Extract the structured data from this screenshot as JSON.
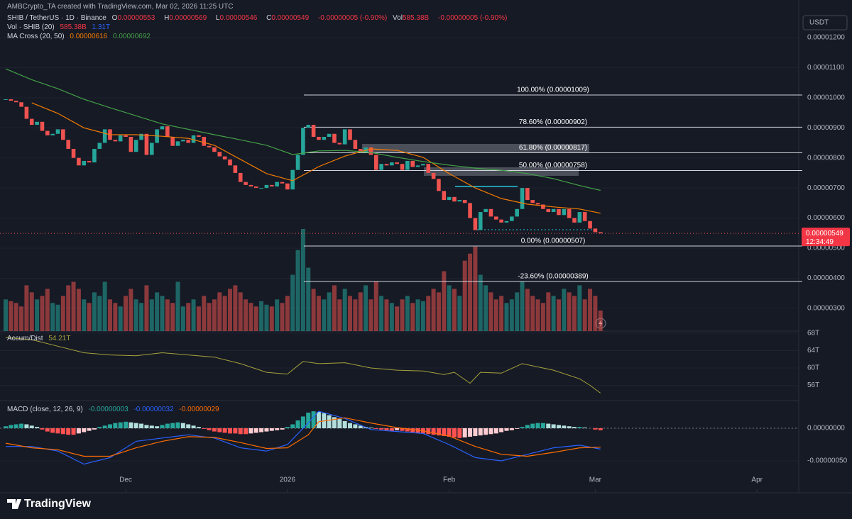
{
  "header": {
    "credit": "AMBCrypto_TA created with TradingView.com, Mar 02, 2026 11:25 UTC",
    "currency": "USDT",
    "branding": "TradingView"
  },
  "chart_data": [
    {
      "type": "candlestick",
      "symbol": "SHIB / TetherUS · 1D · Binance",
      "ohlc_legend": [
        {
          "label": "O",
          "value": "0.00000553"
        },
        {
          "label": "H",
          "value": "0.00000569"
        },
        {
          "label": "L",
          "value": "0.00000546"
        },
        {
          "label": "C",
          "value": "0.00000549"
        }
      ],
      "change": "-0.00000005 (-0.90%)",
      "volume_legend": {
        "label": "Vol",
        "value": "585.38B"
      },
      "volume_change": "-0.00000005 (-0.90%)",
      "volume_indicator": {
        "name": "Vol · SHIB (20)",
        "values": [
          "585.38B",
          "1.31T"
        ],
        "colors": [
          "#f23645",
          "#2962ff"
        ]
      },
      "ma_legend": "MA Cross (20, 50)",
      "up_color": "#26a69a",
      "down_color": "#ef5350",
      "xlim": [
        -1.09,
        152
      ],
      "xticks": [
        {
          "value": 23,
          "label": "Dec"
        },
        {
          "value": 54,
          "label": "2026"
        },
        {
          "value": 85,
          "label": "Feb"
        },
        {
          "value": 113,
          "label": "Mar"
        },
        {
          "value": 144,
          "label": "Apr"
        }
      ],
      "ylim": [
        2.17e-06,
        1.325e-05
      ],
      "yticks": [
        {
          "value": 1.2e-05,
          "label": "0.00001200"
        },
        {
          "value": 1.1e-05,
          "label": "0.00001100"
        },
        {
          "value": 1e-05,
          "label": "0.00001000"
        },
        {
          "value": 9e-06,
          "label": "0.00000900"
        },
        {
          "value": 8e-06,
          "label": "0.00000800"
        },
        {
          "value": 7e-06,
          "label": "0.00000700"
        },
        {
          "value": 6e-06,
          "label": "0.00000600"
        },
        {
          "value": 5e-06,
          "label": "0.00000500"
        },
        {
          "value": 4e-06,
          "label": "0.00000400"
        },
        {
          "value": 3e-06,
          "label": "0.00000300"
        }
      ],
      "grid": true,
      "close": [
        9.95e-06,
        9.9e-06,
        9.85e-06,
        9.7e-06,
        9.3e-06,
        9.1e-06,
        9.2e-06,
        8.9e-06,
        8.75e-06,
        8.8e-06,
        8.95e-06,
        8.6e-06,
        8.3e-06,
        8e-06,
        7.75e-06,
        7.9e-06,
        7.85e-06,
        8.3e-06,
        8.5e-06,
        8.95e-06,
        8.6e-06,
        8.55e-06,
        8.75e-06,
        8.7e-06,
        8.2e-06,
        8.6e-06,
        8.8e-06,
        8.1e-06,
        8.5e-06,
        8.95e-06,
        9.05e-06,
        8.7e-06,
        8.4e-06,
        8.55e-06,
        8.6e-06,
        8.5e-06,
        8.75e-06,
        8.7e-06,
        8.4e-06,
        8.35e-06,
        8.2e-06,
        8.05e-06,
        7.95e-06,
        7.75e-06,
        7.5e-06,
        7.2e-06,
        7.1e-06,
        7.05e-06,
        7e-06,
        7e-06,
        7.1e-06,
        7.05e-06,
        7.2e-06,
        7.15e-06,
        6.95e-06,
        7.6e-06,
        8.1e-06,
        9e-06,
        9.1e-06,
        8.7e-06,
        8.6e-06,
        8.7e-06,
        8.8e-06,
        8.5e-06,
        8.45e-06,
        8.95e-06,
        8.6e-06,
        8.3e-06,
        8.2e-06,
        8.35e-06,
        8.1e-06,
        7.6e-06,
        7.8e-06,
        7.75e-06,
        7.85e-06,
        7.8e-06,
        7.6e-06,
        7.9e-06,
        7.7e-06,
        7.75e-06,
        7.8e-06,
        7.5e-06,
        7.3e-06,
        6.9e-06,
        6.6e-06,
        6.7e-06,
        6.55e-06,
        6.6e-06,
        6.5e-06,
        6e-06,
        5.6e-06,
        6.2e-06,
        6.3e-06,
        6.05e-06,
        5.95e-06,
        5.85e-06,
        5.9e-06,
        6.05e-06,
        6.3e-06,
        7e-06,
        6.6e-06,
        6.5e-06,
        6.45e-06,
        6.3e-06,
        6.2e-06,
        6.3e-06,
        6.1e-06,
        6.3e-06,
        6e-06,
        5.85e-06,
        6.2e-06,
        5.9e-06,
        5.65e-06,
        5.53e-06,
        5.49e-06
      ],
      "volume": [
        900,
        850,
        800,
        700,
        1300,
        1100,
        900,
        1000,
        1200,
        800,
        750,
        1000,
        1300,
        1400,
        1200,
        900,
        800,
        1100,
        1000,
        1400,
        900,
        800,
        700,
        1000,
        1200,
        900,
        800,
        1300,
        900,
        1100,
        1000,
        900,
        800,
        1400,
        700,
        800,
        900,
        700,
        1000,
        800,
        900,
        1100,
        1000,
        1200,
        1300,
        1100,
        900,
        800,
        700,
        850,
        750,
        700,
        900,
        800,
        1000,
        1600,
        2300,
        2900,
        1800,
        1200,
        1000,
        900,
        1100,
        1300,
        900,
        1200,
        1000,
        900,
        1100,
        1300,
        900,
        1400,
        1000,
        900,
        800,
        700,
        900,
        1000,
        800,
        900,
        850,
        1000,
        1200,
        1100,
        1700,
        1300,
        1200,
        1000,
        2000,
        2200,
        2400,
        1600,
        1300,
        1100,
        900,
        1000,
        800,
        900,
        1100,
        1400,
        1200,
        1000,
        900,
        800,
        1100,
        1000,
        900,
        1200,
        1100,
        1000,
        1300,
        900,
        1200,
        1000,
        585.38
      ],
      "volume_ylim": [
        0,
        9400
      ],
      "ma": {
        "x": [
          0,
          5,
          10,
          15,
          20,
          25,
          30,
          35,
          40,
          45,
          50,
          55,
          60,
          65,
          70,
          75,
          80,
          85,
          90,
          95,
          100,
          105,
          110,
          114
        ],
        "series": [
          {
            "color": "#f57c00",
            "legend": "0.00000616",
            "values": [
              null,
              9.83e-06,
              9.48e-06,
              9e-06,
              8.77e-06,
              8.77e-06,
              8.72e-06,
              8.65e-06,
              8.42e-06,
              7.95e-06,
              7.48e-06,
              7.24e-06,
              7.71e-06,
              8.06e-06,
              8.3e-06,
              8.25e-06,
              8.02e-06,
              7.48e-06,
              7e-06,
              6.65e-06,
              6.46e-06,
              6.37e-06,
              6.3e-06,
              6.16e-06
            ]
          },
          {
            "color": "#43a047",
            "legend": "0.00000692",
            "values": [
              1.096e-05,
              1.06e-05,
              1.03e-05,
              9.95e-06,
              9.67e-06,
              9.4e-06,
              9.13e-06,
              8.95e-06,
              8.77e-06,
              8.6e-06,
              8.42e-06,
              8.11e-06,
              8.23e-06,
              8.25e-06,
              8.18e-06,
              8.02e-06,
              7.88e-06,
              7.76e-06,
              7.66e-06,
              7.59e-06,
              7.48e-06,
              7.31e-06,
              7.08e-06,
              6.92e-06
            ]
          }
        ]
      },
      "fib": [
        {
          "value": 1.009e-05,
          "label": "100.00% (0.00001009)"
        },
        {
          "value": 9.02e-06,
          "label": "78.60% (0.00000902)"
        },
        {
          "value": 8.17e-06,
          "label": "61.80% (0.00000817)"
        },
        {
          "value": 7.58e-06,
          "label": "50.00% (0.00000758)"
        },
        {
          "value": 5.07e-06,
          "label": "0.00% (0.00000507)"
        },
        {
          "value": 3.89e-06,
          "label": "-23.60% (0.00000389)"
        }
      ],
      "price_tag": {
        "value": 5.49e-06,
        "label": "0.00000549"
      },
      "countdown": "12:34:49"
    },
    {
      "type": "line",
      "name": "Accum/Dist",
      "legend": "54.21T",
      "color": "#a5a23a",
      "x": [
        0,
        5,
        10,
        15,
        20,
        25,
        30,
        35,
        40,
        45,
        50,
        54,
        57,
        60,
        65,
        70,
        75,
        80,
        84,
        86,
        89,
        91,
        95,
        99,
        105,
        110,
        112,
        114
      ],
      "values": [
        67,
        66.5,
        65,
        63.5,
        63,
        62.8,
        63.5,
        63,
        62.5,
        61,
        59,
        58.6,
        61.5,
        61,
        61.2,
        60,
        59.5,
        59.3,
        58.5,
        59,
        56.5,
        59,
        58.8,
        61,
        59.5,
        57.5,
        56,
        54.21
      ],
      "ylim": [
        52.5,
        68.8
      ],
      "yticks": [
        {
          "value": 68,
          "label": "68T"
        },
        {
          "value": 64,
          "label": "64T"
        },
        {
          "value": 60,
          "label": "60T"
        },
        {
          "value": 56,
          "label": "56T"
        }
      ]
    },
    {
      "type": "macd",
      "name": "MACD (close, 12, 26, 9)",
      "histogram_legend": "-0.00000003",
      "histogram": [
        3e-08,
        5e-08,
        6e-08,
        7e-08,
        6e-08,
        4e-08,
        2e-08,
        -2e-08,
        -5e-08,
        -7e-08,
        -8e-08,
        -9e-08,
        -1e-07,
        -1e-07,
        -8e-08,
        -6e-08,
        -4e-08,
        -2e-08,
        2e-08,
        4e-08,
        6e-08,
        8e-08,
        9e-08,
        1e-07,
        9e-08,
        8e-08,
        7e-08,
        5e-08,
        4e-08,
        3e-08,
        5e-08,
        7e-08,
        8e-08,
        9e-08,
        8e-08,
        6e-08,
        4e-08,
        2e-08,
        -1e-08,
        -3e-08,
        -5e-08,
        -6e-08,
        -7e-08,
        -8e-08,
        -8e-08,
        -9e-08,
        -9e-08,
        -8e-08,
        -7e-08,
        -6e-08,
        -5e-08,
        -4e-08,
        -3e-08,
        -2e-08,
        2e-08,
        6e-08,
        1.2e-07,
        1.8e-07,
        2.4e-07,
        2.6e-07,
        2.5e-07,
        2.3e-07,
        2e-07,
        1.7e-07,
        1.4e-07,
        1.1e-07,
        8e-08,
        6e-08,
        4e-08,
        2e-08,
        1e-08,
        -1e-08,
        -2e-08,
        -3e-08,
        -4e-08,
        -3e-08,
        -4e-08,
        -5e-08,
        -6e-08,
        -7e-08,
        -8e-08,
        -9e-08,
        -1e-07,
        -1.1e-07,
        -1.2e-07,
        -1.3e-07,
        -1.4e-07,
        -1.5e-07,
        -1.4e-07,
        -1.3e-07,
        -1.2e-07,
        -1.1e-07,
        -1e-07,
        -9e-08,
        -8e-08,
        -6e-08,
        -4e-08,
        -3e-08,
        -1e-08,
        2e-08,
        5e-08,
        7e-08,
        8e-08,
        8e-08,
        7e-08,
        6e-08,
        5e-08,
        4e-08,
        3e-08,
        2e-08,
        2e-08,
        1e-08,
        0,
        -2e-08,
        -3e-08
      ],
      "x": [
        0,
        5,
        10,
        15,
        20,
        25,
        30,
        35,
        40,
        45,
        50,
        54,
        58,
        60,
        65,
        70,
        75,
        80,
        85,
        90,
        95,
        100,
        105,
        110,
        114
      ],
      "series": [
        {
          "color": "#2962ff",
          "legend": "-0.00000032",
          "values": [
            -2.8e-07,
            -2.8e-07,
            -3.5e-07,
            -5.5e-07,
            -4.5e-07,
            -2e-07,
            -1.5e-07,
            -1e-07,
            -1.5e-07,
            -3e-07,
            -3.5e-07,
            -2.5e-07,
            8e-08,
            2.6e-07,
            1.5e-07,
            -2e-08,
            -5e-08,
            -8e-08,
            -2.5e-07,
            -4.5e-07,
            -5e-07,
            -4e-07,
            -3e-07,
            -2.6e-07,
            -3.2e-07
          ]
        },
        {
          "color": "#ff6d00",
          "legend": "-0.00000029",
          "values": [
            -2.3e-07,
            -3e-07,
            -3.3e-07,
            -4.3e-07,
            -4.3e-07,
            -3e-07,
            -2e-07,
            -1.3e-07,
            -1.4e-07,
            -2.2e-07,
            -3.1e-07,
            -3e-07,
            -1e-07,
            1e-07,
            1.6e-07,
            8e-08,
            1e-08,
            -4e-08,
            -1.2e-07,
            -2.8e-07,
            -4e-07,
            -4.3e-07,
            -3.7e-07,
            -3e-07,
            -2.9e-07
          ]
        }
      ],
      "ylim": [
        -9.35e-07,
        4.13e-07
      ],
      "yticks": [
        {
          "value": 0,
          "label": "0.00000000"
        },
        {
          "value": -5e-07,
          "label": "-0.00000050"
        }
      ]
    }
  ]
}
